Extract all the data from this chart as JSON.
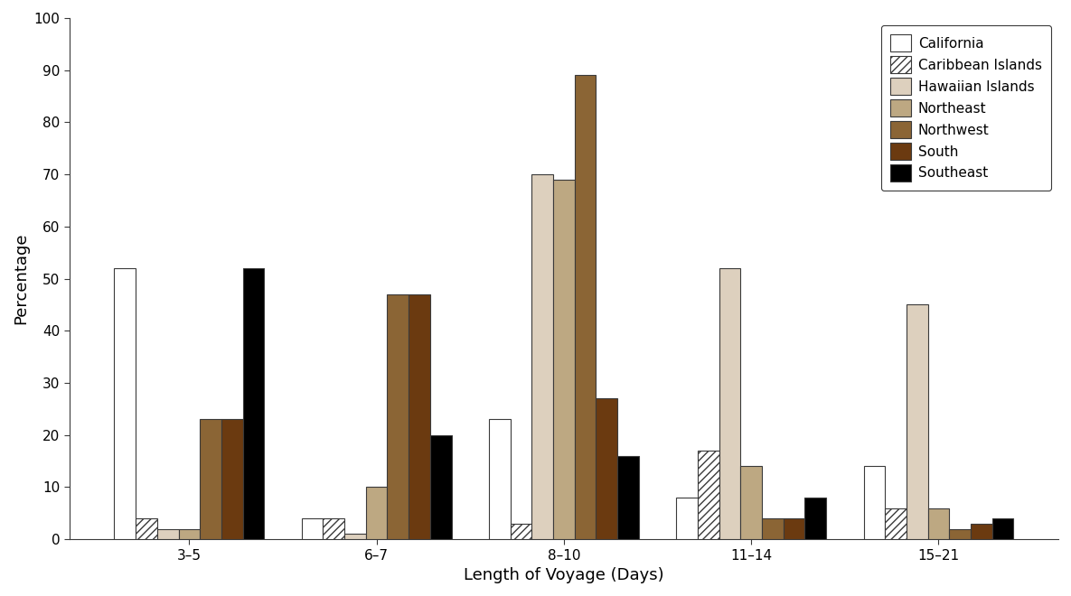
{
  "categories": [
    "3–5",
    "6–7",
    "8–10",
    "11–14",
    "15–21"
  ],
  "series": {
    "California": [
      52,
      4,
      23,
      8,
      14
    ],
    "Caribbean Islands": [
      4,
      4,
      3,
      17,
      6
    ],
    "Hawaiian Islands": [
      2,
      1,
      70,
      52,
      45
    ],
    "Northeast": [
      2,
      10,
      69,
      14,
      6
    ],
    "Northwest": [
      23,
      47,
      89,
      4,
      2
    ],
    "South": [
      23,
      47,
      27,
      4,
      3
    ],
    "Southeast": [
      52,
      20,
      16,
      8,
      4
    ]
  },
  "colors": {
    "California": {
      "facecolor": "#ffffff",
      "edgecolor": "#3a3a3a",
      "hatch": null
    },
    "Caribbean Islands": {
      "facecolor": "#ffffff",
      "edgecolor": "#3a3a3a",
      "hatch": "////"
    },
    "Hawaiian Islands": {
      "facecolor": "#ddd0be",
      "edgecolor": "#3a3a3a",
      "hatch": null
    },
    "Northeast": {
      "facecolor": "#bda882",
      "edgecolor": "#3a3a3a",
      "hatch": null
    },
    "Northwest": {
      "facecolor": "#8b6535",
      "edgecolor": "#3a3a3a",
      "hatch": null
    },
    "South": {
      "facecolor": "#6b3a10",
      "edgecolor": "#3a3a3a",
      "hatch": null
    },
    "Southeast": {
      "facecolor": "#000000",
      "edgecolor": "#3a3a3a",
      "hatch": null
    }
  },
  "legend_order": [
    "California",
    "Caribbean Islands",
    "Hawaiian Islands",
    "Northeast",
    "Northwest",
    "South",
    "Southeast"
  ],
  "xlabel": "Length of Voyage (Days)",
  "ylabel": "Percentage",
  "ylim": [
    0,
    100
  ],
  "yticks": [
    0,
    10,
    20,
    30,
    40,
    50,
    60,
    70,
    80,
    90,
    100
  ],
  "background_color": "#ffffff",
  "group_width": 0.8,
  "bar_edge_linewidth": 0.8
}
